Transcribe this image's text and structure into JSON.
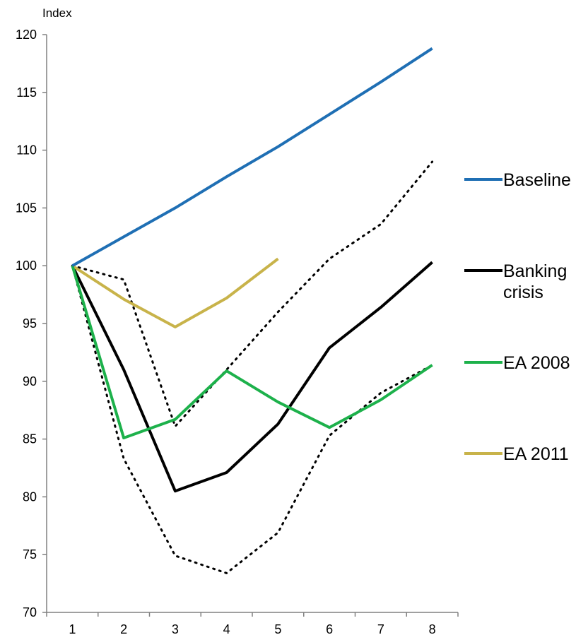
{
  "chart_data": {
    "type": "line",
    "title": "",
    "xlabel": "",
    "ylabel": "Index",
    "x": [
      1,
      2,
      3,
      4,
      5,
      6,
      7,
      8
    ],
    "xlim": [
      0.5,
      8.5
    ],
    "ylim": [
      70,
      120
    ],
    "y_ticks": [
      70,
      75,
      80,
      85,
      90,
      95,
      100,
      105,
      110,
      115,
      120
    ],
    "grid": false,
    "legend_placement": "right",
    "series": [
      {
        "name": "Baseline",
        "color": "#1f6fb4",
        "style": "solid",
        "x": [
          1,
          2,
          3,
          4,
          5,
          6,
          7,
          8
        ],
        "values": [
          100,
          102.5,
          105.0,
          107.7,
          110.3,
          113.1,
          115.9,
          118.8
        ]
      },
      {
        "name": "Banking crisis",
        "color": "#000000",
        "style": "solid",
        "x": [
          1,
          2,
          3,
          4,
          5,
          6,
          7,
          8
        ],
        "values": [
          100,
          91.0,
          80.5,
          82.1,
          86.3,
          92.9,
          96.4,
          100.3
        ]
      },
      {
        "name": "EA 2008",
        "color": "#1db14b",
        "style": "solid",
        "x": [
          1,
          2,
          3,
          4,
          5,
          6,
          7,
          8
        ],
        "values": [
          100,
          85.1,
          86.7,
          90.9,
          88.2,
          86.0,
          88.4,
          91.4
        ]
      },
      {
        "name": "EA 2011",
        "color": "#c8b34a",
        "style": "solid",
        "x": [
          1,
          2,
          3,
          4,
          5
        ],
        "values": [
          100,
          97.1,
          94.7,
          97.2,
          100.6
        ]
      },
      {
        "name": "",
        "color": "#000000",
        "style": "dotted",
        "x": [
          1,
          2,
          3,
          4,
          5,
          6,
          7,
          8
        ],
        "values": [
          100,
          98.8,
          86.1,
          91.0,
          96.0,
          100.6,
          103.6,
          109.0
        ]
      },
      {
        "name": "",
        "color": "#000000",
        "style": "dotted",
        "x": [
          1,
          2,
          3,
          4,
          5,
          6,
          7,
          8
        ],
        "values": [
          100,
          83.3,
          74.9,
          73.4,
          76.9,
          85.3,
          89.0,
          91.4
        ]
      }
    ],
    "legend": [
      "Baseline",
      "Banking",
      "crisis",
      "EA 2008",
      "EA 2011"
    ]
  }
}
